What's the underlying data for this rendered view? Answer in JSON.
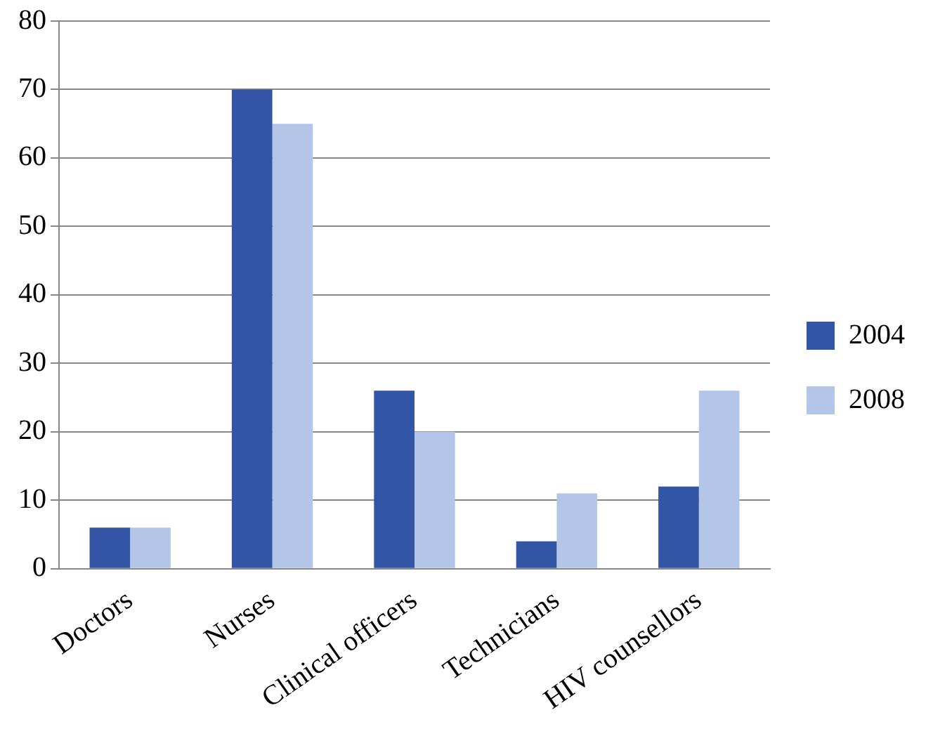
{
  "chart_data": {
    "type": "bar",
    "categories": [
      "Doctors",
      "Nurses",
      "Clinical officers",
      "Technicians",
      "HIV counsellors"
    ],
    "series": [
      {
        "name": "2004",
        "color": "#3355a5",
        "values": [
          6,
          70,
          26,
          4,
          12
        ]
      },
      {
        "name": "2008",
        "color": "#b4c6e7",
        "values": [
          6,
          65,
          20,
          11,
          26
        ]
      }
    ],
    "ylim": [
      0,
      80
    ],
    "yticks": [
      0,
      10,
      20,
      30,
      40,
      50,
      60,
      70,
      80
    ],
    "grid": "y",
    "legend": "right"
  }
}
